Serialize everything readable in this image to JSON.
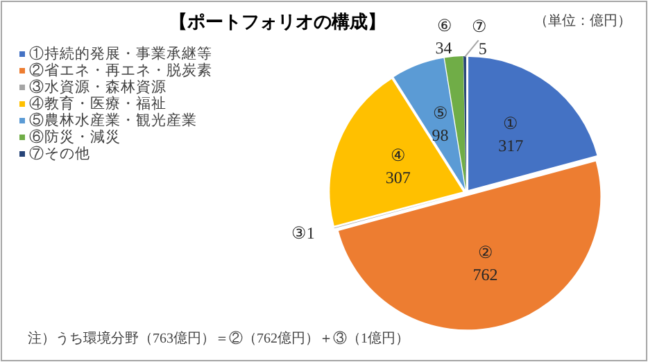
{
  "chart_data": {
    "type": "pie",
    "title": "【ポートフォリオの構成】",
    "categories": [
      "①持続的発展・事業承継等",
      "②省エネ・再エネ・脱炭素",
      "③水資源・森林資源",
      "④教育・医療・福祉",
      "⑤農林水産業・観光産業",
      "⑥防災・減災",
      "⑦その他"
    ],
    "values": [
      317,
      762,
      1,
      307,
      98,
      34,
      5
    ],
    "colors": [
      "#4472c4",
      "#ed7d31",
      "#a5a5a5",
      "#ffc000",
      "#5b9bd5",
      "#70ad47",
      "#264478"
    ],
    "value_labels": [
      "①\n317",
      "②\n762",
      "③1",
      "④\n307",
      "⑤\n98",
      "⑥\n34",
      "⑦\n5"
    ],
    "legend": "left",
    "annotations": [
      "（単位：億円）",
      "注）うち環境分野（763億円）＝②（762億円）＋③（1億円）"
    ]
  }
}
